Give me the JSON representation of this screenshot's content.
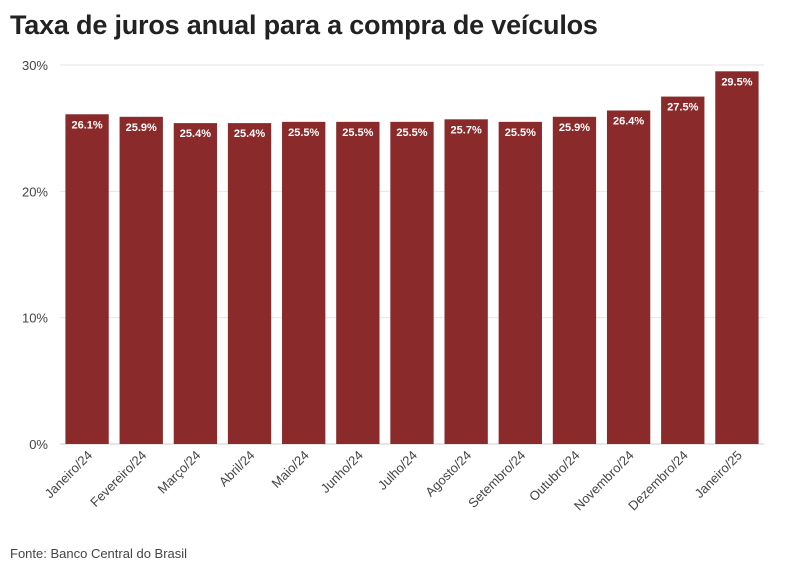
{
  "chart_data": {
    "type": "bar",
    "title": "Taxa de juros anual para a compra de veículos",
    "categories": [
      "Janeiro/24",
      "Fevereiro/24",
      "Março/24",
      "Abril/24",
      "Maio/24",
      "Junho/24",
      "Julho/24",
      "Agosto/24",
      "Setembro/24",
      "Outubro/24",
      "Novembro/24",
      "Dezembro/24",
      "Janeiro/25"
    ],
    "values": [
      26.1,
      25.9,
      25.4,
      25.4,
      25.5,
      25.5,
      25.5,
      25.7,
      25.5,
      25.9,
      26.4,
      27.5,
      29.5
    ],
    "value_labels": [
      "26.1%",
      "25.9%",
      "25.4%",
      "25.4%",
      "25.5%",
      "25.5%",
      "25.5%",
      "25.7%",
      "25.5%",
      "25.9%",
      "26.4%",
      "27.5%",
      "29.5%"
    ],
    "yticks": [
      0,
      10,
      20,
      30
    ],
    "ytick_labels": [
      "0%",
      "10%",
      "20%",
      "30%"
    ],
    "ylim": [
      0,
      30
    ],
    "xlabel": "",
    "ylabel": "",
    "grid": true,
    "colors": {
      "bar": "#8b2a2b",
      "grid": "#e6e6e6",
      "axis": "#cccccc"
    }
  },
  "source": "Fonte: Banco Central do Brasil"
}
